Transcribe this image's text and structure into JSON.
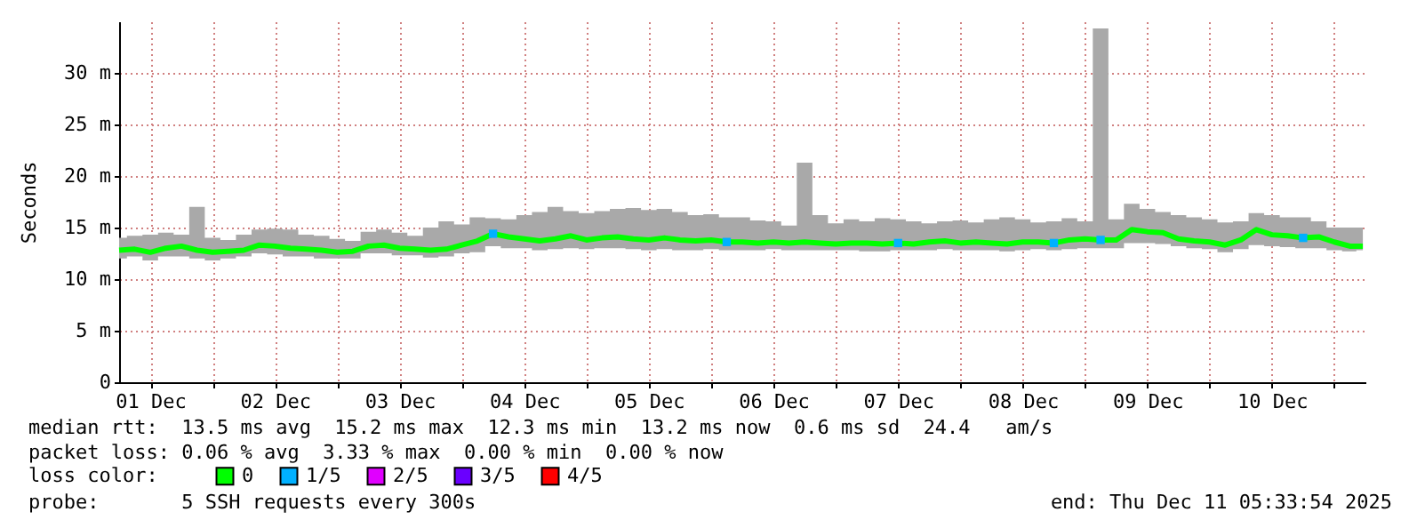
{
  "chart_data": {
    "type": "line",
    "ylabel": "Seconds",
    "legend_title": "loss color:",
    "legend": "bottom",
    "grid": true,
    "xlim": [
      "2025-12-01T06:00",
      "2025-12-11T06:00"
    ],
    "xticks": [
      {
        "value": "2025-12-01T12:00",
        "label": "01 Dec"
      },
      {
        "value": "2025-12-02T00:00",
        "label": null
      },
      {
        "value": "2025-12-02T12:00",
        "label": "02 Dec"
      },
      {
        "value": "2025-12-03T00:00",
        "label": null
      },
      {
        "value": "2025-12-03T12:00",
        "label": "03 Dec"
      },
      {
        "value": "2025-12-04T00:00",
        "label": null
      },
      {
        "value": "2025-12-04T12:00",
        "label": "04 Dec"
      },
      {
        "value": "2025-12-05T00:00",
        "label": null
      },
      {
        "value": "2025-12-05T12:00",
        "label": "05 Dec"
      },
      {
        "value": "2025-12-06T00:00",
        "label": null
      },
      {
        "value": "2025-12-06T12:00",
        "label": "06 Dec"
      },
      {
        "value": "2025-12-07T00:00",
        "label": null
      },
      {
        "value": "2025-12-07T12:00",
        "label": "07 Dec"
      },
      {
        "value": "2025-12-08T00:00",
        "label": null
      },
      {
        "value": "2025-12-08T12:00",
        "label": "08 Dec"
      },
      {
        "value": "2025-12-09T00:00",
        "label": null
      },
      {
        "value": "2025-12-09T12:00",
        "label": "09 Dec"
      },
      {
        "value": "2025-12-10T00:00",
        "label": null
      },
      {
        "value": "2025-12-10T12:00",
        "label": "10 Dec"
      },
      {
        "value": "2025-12-11T00:00",
        "label": null
      }
    ],
    "ylim": [
      0,
      35
    ],
    "yticks": [
      0,
      {
        "value": 5,
        "label": "5 m"
      },
      {
        "value": 10,
        "label": "10 m"
      },
      {
        "value": 15,
        "label": "15 m"
      },
      {
        "value": 20,
        "label": "20 m"
      },
      {
        "value": 25,
        "label": "25 m"
      },
      {
        "value": 30,
        "label": "30 m"
      }
    ],
    "x": [
      "2025-12-01T06:00",
      "2025-12-01T09:00",
      "2025-12-01T12:00",
      "2025-12-01T15:00",
      "2025-12-01T18:00",
      "2025-12-01T21:00",
      "2025-12-02T00:00",
      "2025-12-02T03:00",
      "2025-12-02T06:00",
      "2025-12-02T09:00",
      "2025-12-02T12:00",
      "2025-12-02T15:00",
      "2025-12-02T18:00",
      "2025-12-02T21:00",
      "2025-12-03T00:00",
      "2025-12-03T03:00",
      "2025-12-03T06:00",
      "2025-12-03T09:00",
      "2025-12-03T12:00",
      "2025-12-03T15:00",
      "2025-12-03T18:00",
      "2025-12-03T21:00",
      "2025-12-04T00:00",
      "2025-12-04T03:00",
      "2025-12-04T06:00",
      "2025-12-04T09:00",
      "2025-12-04T12:00",
      "2025-12-04T15:00",
      "2025-12-04T18:00",
      "2025-12-04T21:00",
      "2025-12-05T00:00",
      "2025-12-05T03:00",
      "2025-12-05T06:00",
      "2025-12-05T09:00",
      "2025-12-05T12:00",
      "2025-12-05T15:00",
      "2025-12-05T18:00",
      "2025-12-05T21:00",
      "2025-12-06T00:00",
      "2025-12-06T03:00",
      "2025-12-06T06:00",
      "2025-12-06T09:00",
      "2025-12-06T12:00",
      "2025-12-06T15:00",
      "2025-12-06T18:00",
      "2025-12-06T21:00",
      "2025-12-07T00:00",
      "2025-12-07T03:00",
      "2025-12-07T06:00",
      "2025-12-07T09:00",
      "2025-12-07T12:00",
      "2025-12-07T15:00",
      "2025-12-07T18:00",
      "2025-12-07T21:00",
      "2025-12-08T00:00",
      "2025-12-08T03:00",
      "2025-12-08T06:00",
      "2025-12-08T09:00",
      "2025-12-08T12:00",
      "2025-12-08T15:00",
      "2025-12-08T18:00",
      "2025-12-08T21:00",
      "2025-12-09T00:00",
      "2025-12-09T03:00",
      "2025-12-09T06:00",
      "2025-12-09T09:00",
      "2025-12-09T12:00",
      "2025-12-09T15:00",
      "2025-12-09T18:00",
      "2025-12-09T21:00",
      "2025-12-10T00:00",
      "2025-12-10T03:00",
      "2025-12-10T06:00",
      "2025-12-10T09:00",
      "2025-12-10T12:00",
      "2025-12-10T15:00",
      "2025-12-10T18:00",
      "2025-12-10T21:00",
      "2025-12-11T00:00",
      "2025-12-11T03:00",
      "2025-12-11T05:30"
    ],
    "series": [
      {
        "name": "0",
        "color": "#00ff00",
        "values": [
          12.8,
          12.9,
          12.6,
          13.0,
          13.2,
          12.8,
          12.6,
          12.7,
          12.8,
          13.3,
          13.2,
          13.0,
          12.9,
          12.8,
          12.6,
          12.7,
          13.2,
          13.3,
          13.0,
          12.9,
          12.8,
          12.9,
          13.3,
          13.7,
          14.4,
          14.1,
          13.9,
          13.7,
          13.9,
          14.2,
          13.8,
          14.0,
          14.1,
          13.9,
          13.8,
          14.0,
          13.8,
          13.7,
          13.8,
          13.6,
          13.6,
          13.5,
          13.6,
          13.5,
          13.6,
          13.5,
          13.4,
          13.5,
          13.5,
          13.4,
          13.5,
          13.4,
          13.6,
          13.7,
          13.5,
          13.6,
          13.5,
          13.4,
          13.6,
          13.6,
          13.5,
          13.8,
          13.9,
          13.8,
          13.8,
          14.8,
          14.6,
          14.5,
          13.9,
          13.7,
          13.6,
          13.3,
          13.8,
          14.8,
          14.3,
          14.2,
          14.0,
          14.1,
          13.6,
          13.2,
          13.2
        ],
        "lower": [
          12.0,
          12.2,
          11.8,
          12.2,
          12.2,
          12.0,
          11.8,
          12.0,
          12.2,
          12.5,
          12.4,
          12.2,
          12.2,
          12.0,
          12.0,
          12.0,
          12.5,
          12.5,
          12.3,
          12.3,
          12.1,
          12.2,
          12.5,
          12.6,
          13.2,
          13.0,
          13.0,
          12.8,
          12.9,
          13.0,
          12.9,
          13.0,
          13.0,
          12.9,
          12.8,
          12.9,
          12.8,
          12.8,
          12.9,
          12.8,
          12.8,
          12.8,
          12.9,
          12.8,
          12.8,
          12.8,
          12.8,
          12.8,
          12.7,
          12.7,
          12.8,
          12.8,
          12.8,
          12.9,
          12.8,
          12.8,
          12.8,
          12.7,
          12.8,
          12.9,
          12.8,
          12.9,
          13.0,
          13.0,
          13.0,
          13.5,
          13.5,
          13.4,
          13.2,
          13.0,
          12.9,
          12.6,
          12.9,
          13.3,
          13.2,
          13.1,
          13.0,
          13.0,
          12.8,
          12.7,
          12.8
        ],
        "upper": [
          14.0,
          14.2,
          14.3,
          14.5,
          14.3,
          17.0,
          14.0,
          13.8,
          14.3,
          14.8,
          14.9,
          14.8,
          14.3,
          14.2,
          13.9,
          13.7,
          14.6,
          14.8,
          14.5,
          14.2,
          15.0,
          15.6,
          15.3,
          16.0,
          15.9,
          15.8,
          16.2,
          16.5,
          17.0,
          16.6,
          16.4,
          16.6,
          16.8,
          16.9,
          16.7,
          16.8,
          16.5,
          16.2,
          16.3,
          16.0,
          16.0,
          15.7,
          15.6,
          15.2,
          21.3,
          16.2,
          15.4,
          15.8,
          15.6,
          15.9,
          15.8,
          15.6,
          15.4,
          15.6,
          15.7,
          15.5,
          15.8,
          16.0,
          15.8,
          15.5,
          15.6,
          15.9,
          15.6,
          34.3,
          15.8,
          17.3,
          16.8,
          16.5,
          16.2,
          16.0,
          15.8,
          15.5,
          15.6,
          16.4,
          16.2,
          16.0,
          16.0,
          15.6,
          15.0,
          15.0,
          15.0
        ]
      },
      {
        "name": "1/5",
        "color": "#00b0ff",
        "type": "scatter",
        "marker": "square",
        "x": [
          "2025-12-04T06:00",
          "2025-12-06T03:00",
          "2025-12-07T12:00",
          "2025-12-08T18:00",
          "2025-12-09T03:00",
          "2025-12-10T18:00"
        ],
        "values": [
          14.4,
          13.6,
          13.5,
          13.5,
          13.8,
          14.0
        ]
      },
      {
        "name": "2/5",
        "color": "#e000ff",
        "type": "scatter",
        "marker": "square",
        "values": [
          null,
          null,
          null,
          null,
          null,
          null,
          null,
          null,
          null,
          null,
          null,
          null,
          null,
          null,
          null,
          null,
          null,
          null,
          null,
          null,
          null,
          null,
          null,
          null,
          null,
          null,
          null,
          null,
          null,
          null,
          null,
          null,
          null,
          null,
          null,
          null,
          null,
          null,
          null,
          null,
          null,
          null,
          null,
          null,
          null,
          null,
          null,
          null,
          null,
          null,
          null,
          null,
          null,
          null,
          null,
          null,
          null,
          null,
          null,
          null,
          null,
          null,
          null,
          null,
          null,
          null,
          null,
          null,
          null,
          null,
          null,
          null,
          null,
          null,
          null,
          null,
          null,
          null,
          null,
          null,
          null
        ]
      },
      {
        "name": "3/5",
        "color": "#6a00ff",
        "type": "scatter",
        "marker": "square",
        "values": [
          null,
          null,
          null,
          null,
          null,
          null,
          null,
          null,
          null,
          null,
          null,
          null,
          null,
          null,
          null,
          null,
          null,
          null,
          null,
          null,
          null,
          null,
          null,
          null,
          null,
          null,
          null,
          null,
          null,
          null,
          null,
          null,
          null,
          null,
          null,
          null,
          null,
          null,
          null,
          null,
          null,
          null,
          null,
          null,
          null,
          null,
          null,
          null,
          null,
          null,
          null,
          null,
          null,
          null,
          null,
          null,
          null,
          null,
          null,
          null,
          null,
          null,
          null,
          null,
          null,
          null,
          null,
          null,
          null,
          null,
          null,
          null,
          null,
          null,
          null,
          null,
          null,
          null,
          null,
          null,
          null
        ]
      },
      {
        "name": "4/5",
        "color": "#ff0000",
        "type": "scatter",
        "marker": "square",
        "values": [
          null,
          null,
          null,
          null,
          null,
          null,
          null,
          null,
          null,
          null,
          null,
          null,
          null,
          null,
          null,
          null,
          null,
          null,
          null,
          null,
          null,
          null,
          null,
          null,
          null,
          null,
          null,
          null,
          null,
          null,
          null,
          null,
          null,
          null,
          null,
          null,
          null,
          null,
          null,
          null,
          null,
          null,
          null,
          null,
          null,
          null,
          null,
          null,
          null,
          null,
          null,
          null,
          null,
          null,
          null,
          null,
          null,
          null,
          null,
          null,
          null,
          null,
          null,
          null,
          null,
          null,
          null,
          null,
          null,
          null,
          null,
          null,
          null,
          null,
          null,
          null,
          null,
          null,
          null,
          null,
          null
        ]
      }
    ],
    "annotations": [
      "median rtt:  13.5 ms avg  15.2 ms max  12.3 ms min  13.2 ms now  0.6 ms sd  24.4   am/s",
      "packet loss: 0.06 % avg  3.33 % max  0.00 % min  0.00 % now",
      "probe:       5 SSH requests every 300s",
      "end: Thu Dec 11 05:33:54 2025"
    ]
  }
}
